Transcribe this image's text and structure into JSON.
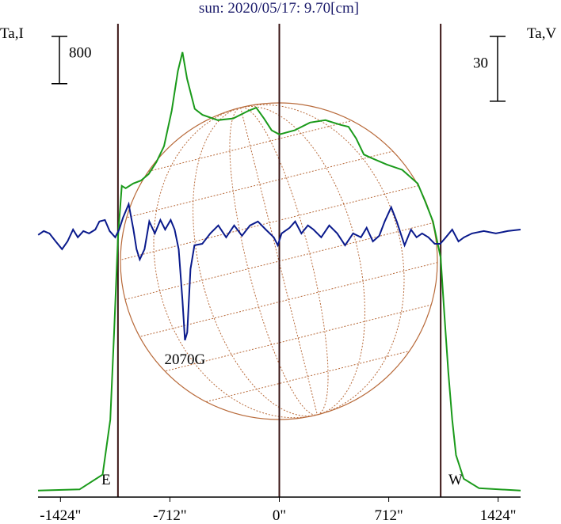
{
  "chart_data": {
    "type": "line",
    "title": "sun: 2020/05/17: 9.70[cm]",
    "y_label": "Ta,I",
    "y2_label": "Ta,V",
    "xlim": [
      -1570,
      1570
    ],
    "xticks": [
      {
        "value": -1424,
        "label": "-1424\""
      },
      {
        "value": -712,
        "label": "-712\""
      },
      {
        "value": 0,
        "label": "0\""
      },
      {
        "value": 712,
        "label": "712\""
      },
      {
        "value": 1424,
        "label": "1424\""
      }
    ],
    "ylim": [
      -100,
      7900
    ],
    "y2lim": [
      -122,
      97
    ],
    "limb_lines": [
      -1050,
      0,
      1050
    ],
    "east_label": "E",
    "west_label": "W",
    "annotation": "2070G",
    "scale_bars": [
      {
        "value": 800,
        "axis": "y"
      },
      {
        "value": 30,
        "axis": "y2"
      }
    ],
    "series": [
      {
        "name": "I",
        "color": "#1a9a1a",
        "x": [
          -1570,
          -1300,
          -1150,
          -1100,
          -1075,
          -1050,
          -1025,
          -1000,
          -950,
          -900,
          -850,
          -800,
          -750,
          -700,
          -660,
          -630,
          -600,
          -550,
          -500,
          -400,
          -300,
          -200,
          -150,
          -100,
          -50,
          0,
          100,
          200,
          300,
          400,
          450,
          500,
          550,
          600,
          700,
          800,
          900,
          950,
          1000,
          1050,
          1075,
          1100,
          1125,
          1150,
          1200,
          1300,
          1570
        ],
        "values": [
          10,
          30,
          280,
          1210,
          2680,
          4290,
          5160,
          5120,
          5200,
          5250,
          5360,
          5560,
          5830,
          6430,
          7100,
          7420,
          6970,
          6460,
          6360,
          6270,
          6300,
          6430,
          6480,
          6300,
          6100,
          6030,
          6100,
          6230,
          6270,
          6190,
          6160,
          5960,
          5690,
          5630,
          5520,
          5430,
          5200,
          4890,
          4560,
          3950,
          2950,
          2010,
          1210,
          610,
          210,
          50,
          10
        ]
      },
      {
        "name": "V",
        "color": "#0a1a8c",
        "axis": "y2",
        "x": [
          -1569,
          -1533,
          -1496,
          -1455,
          -1414,
          -1378,
          -1342,
          -1311,
          -1275,
          -1238,
          -1197,
          -1171,
          -1135,
          -1104,
          -1068,
          -1042,
          -1017,
          -980,
          -949,
          -929,
          -908,
          -877,
          -846,
          -810,
          -774,
          -743,
          -707,
          -681,
          -655,
          -630,
          -614,
          -599,
          -578,
          -552,
          -501,
          -449,
          -397,
          -346,
          -294,
          -243,
          -191,
          -139,
          -88,
          -36,
          -10,
          15,
          67,
          103,
          144,
          186,
          222,
          273,
          325,
          377,
          428,
          480,
          531,
          568,
          609,
          650,
          686,
          728,
          764,
          815,
          857,
          893,
          929,
          970,
          1011,
          1047,
          1084,
          1125,
          1166,
          1202,
          1254,
          1331,
          1409,
          1486,
          1570
        ],
        "values": [
          -0.7,
          1.1,
          0,
          -3.7,
          -7.3,
          -3.7,
          1.8,
          -1.8,
          1.1,
          0,
          1.8,
          5.5,
          6.2,
          1.1,
          -1.8,
          1.8,
          7.3,
          13.5,
          1.8,
          -7.3,
          -12.1,
          -7.3,
          5.5,
          0,
          6.2,
          1.8,
          6.2,
          1.8,
          -7.3,
          -31.1,
          -49.4,
          -45.8,
          -16.5,
          -5.5,
          -4.8,
          0,
          3.7,
          -1.8,
          3.7,
          -1.1,
          3.7,
          5.5,
          1.8,
          -1.8,
          -5.5,
          0,
          2.6,
          5.5,
          0,
          3.7,
          1.8,
          -1.8,
          3.7,
          0,
          -5.5,
          0,
          -1.8,
          2.6,
          -3.7,
          -1.1,
          5.5,
          12.1,
          5.5,
          -5.5,
          1.8,
          -1.8,
          0,
          -1.8,
          -4.8,
          -4.8,
          -1.8,
          1.8,
          -3.7,
          -1.8,
          0,
          1.1,
          0,
          1.1,
          1.8
        ]
      }
    ]
  }
}
